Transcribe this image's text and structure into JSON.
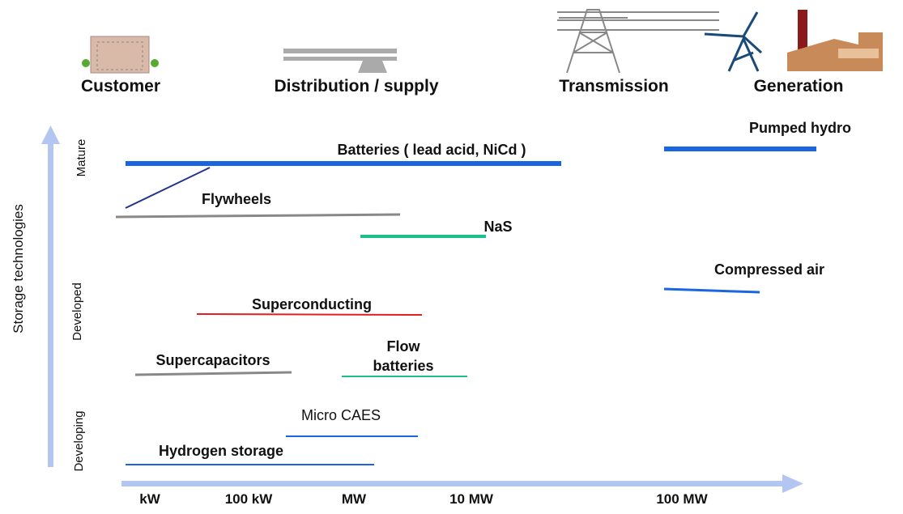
{
  "header": {
    "stages": [
      "Customer",
      "Distribution / supply",
      "Transmission",
      "Generation"
    ]
  },
  "axes": {
    "y_title": "Storage technologies",
    "y_levels": [
      "Mature",
      "Developed",
      "Developing"
    ],
    "x_ticks": [
      "kW",
      "100 kW",
      "MW",
      "10 MW",
      "100 MW"
    ]
  },
  "technologies": [
    {
      "label": "Batteries ( lead acid, NiCd )"
    },
    {
      "label": "Pumped hydro"
    },
    {
      "label": "Flywheels"
    },
    {
      "label": "NaS"
    },
    {
      "label": "Compressed air"
    },
    {
      "label": "Superconducting"
    },
    {
      "label": "Supercapacitors"
    },
    {
      "label_lines": [
        "Flow",
        "batteries"
      ]
    },
    {
      "label": "Micro CAES"
    },
    {
      "label": "Hydrogen storage"
    }
  ]
}
